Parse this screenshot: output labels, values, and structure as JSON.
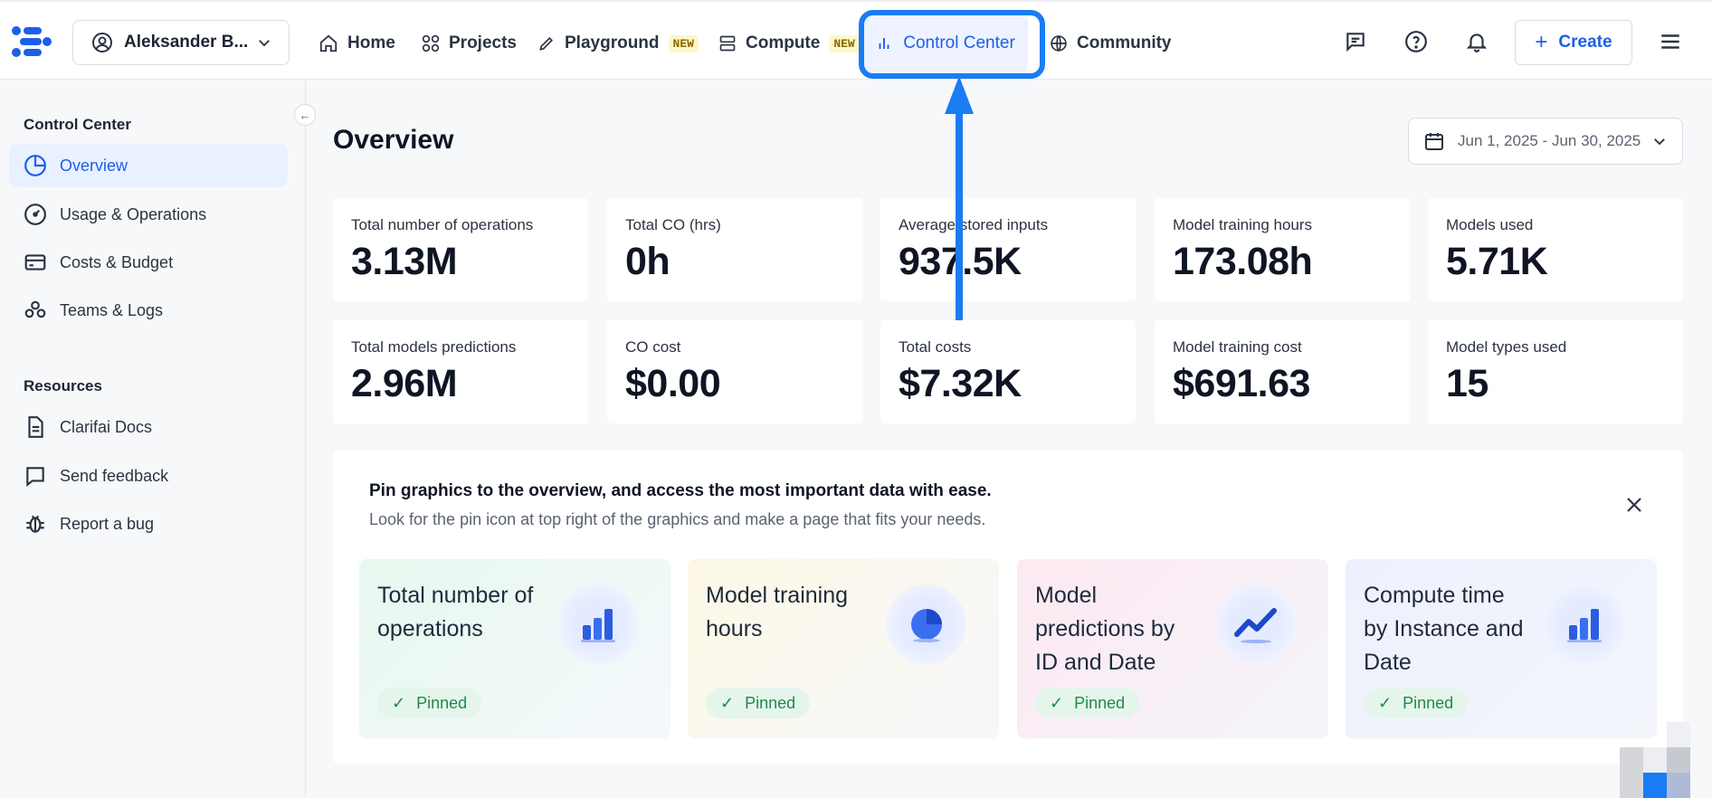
{
  "header": {
    "user_name": "Aleksander B...",
    "nav": [
      {
        "label": "Home",
        "icon": "home-icon"
      },
      {
        "label": "Projects",
        "icon": "projects-grid-icon"
      },
      {
        "label": "Playground",
        "icon": "pencil-icon",
        "badge": "NEW"
      },
      {
        "label": "Compute",
        "icon": "server-icon",
        "badge": "NEW"
      },
      {
        "label": "Control Center",
        "icon": "bar-chart-icon",
        "active": true
      },
      {
        "label": "Community",
        "icon": "globe-icon"
      }
    ],
    "create_label": "Create",
    "accent_color": "#1c5fe8",
    "highlight_color": "#1a7cf2"
  },
  "sidebar": {
    "section1_title": "Control Center",
    "items": [
      {
        "label": "Overview",
        "icon": "pie-chart-icon",
        "active": true
      },
      {
        "label": "Usage & Operations",
        "icon": "gauge-icon"
      },
      {
        "label": "Costs & Budget",
        "icon": "credit-card-icon"
      },
      {
        "label": "Teams & Logs",
        "icon": "team-icon"
      }
    ],
    "section2_title": "Resources",
    "resources": [
      {
        "label": "Clarifai Docs",
        "icon": "document-icon"
      },
      {
        "label": "Send feedback",
        "icon": "chat-bubble-icon"
      },
      {
        "label": "Report a bug",
        "icon": "bug-icon"
      }
    ]
  },
  "main": {
    "title": "Overview",
    "date_range": "Jun 1, 2025 - Jun 30, 2025",
    "stats": [
      {
        "label": "Total number of operations",
        "value": "3.13M"
      },
      {
        "label": "Total CO (hrs)",
        "value": "0h"
      },
      {
        "label": "Average stored inputs",
        "value": "937.5K"
      },
      {
        "label": "Model training hours",
        "value": "173.08h"
      },
      {
        "label": "Models used",
        "value": "5.71K"
      },
      {
        "label": "Total models predictions",
        "value": "2.96M"
      },
      {
        "label": "CO cost",
        "value": "$0.00"
      },
      {
        "label": "Total costs",
        "value": "$7.32K"
      },
      {
        "label": "Model training cost",
        "value": "$691.63"
      },
      {
        "label": "Model types used",
        "value": "15"
      }
    ],
    "pin_panel": {
      "title": "Pin graphics to the overview, and access the most important data with ease.",
      "subtitle": "Look for the pin icon at top right of the graphics and make a page that fits your needs.",
      "cards": [
        {
          "title": "Total number of operations",
          "status": "Pinned",
          "icon": "bar-chart-3d-icon"
        },
        {
          "title": "Model training hours",
          "status": "Pinned",
          "icon": "pie-chart-3d-icon"
        },
        {
          "title": "Model predictions by ID and Date",
          "status": "Pinned",
          "icon": "line-chart-3d-icon"
        },
        {
          "title": "Compute time by Instance and Date",
          "status": "Pinned",
          "icon": "bar-chart-3d-icon"
        }
      ]
    }
  }
}
